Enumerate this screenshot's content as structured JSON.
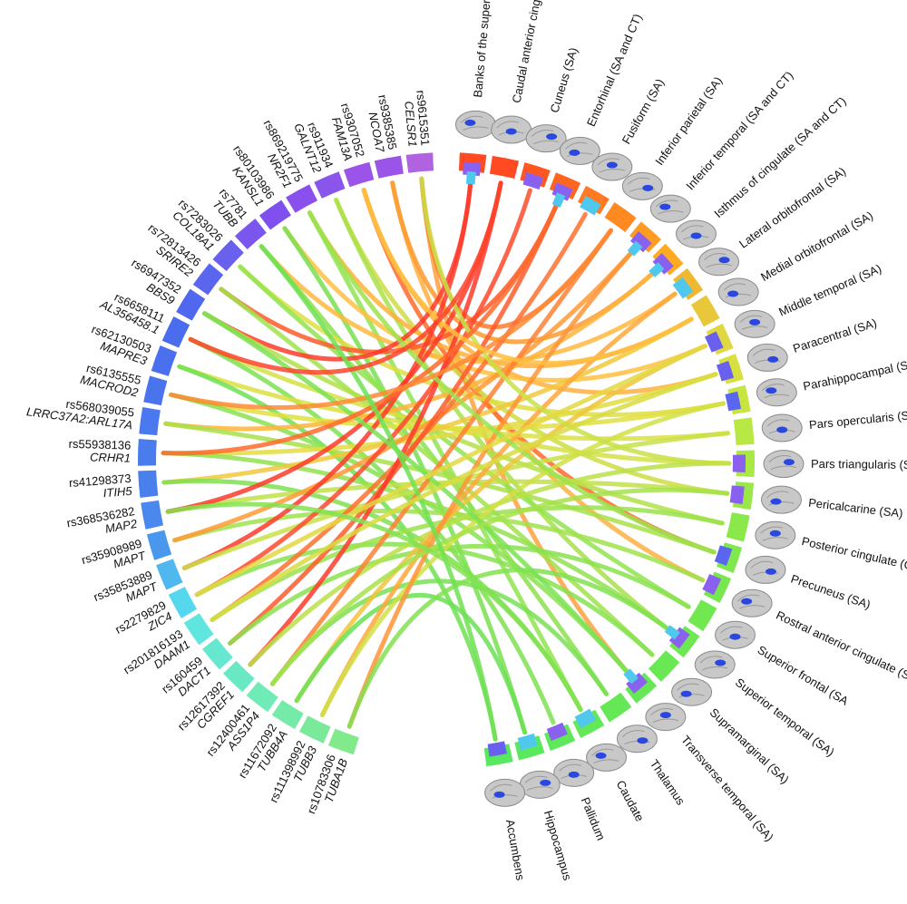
{
  "snps": [
    {
      "id": "rs9615351",
      "gene": "CELSR1",
      "colors": [
        "#b062e0"
      ]
    },
    {
      "id": "rs9385385",
      "gene": "NCOA7",
      "colors": [
        "#9a55e8"
      ]
    },
    {
      "id": "rs9307052",
      "gene": "FAM13A",
      "colors": [
        "#9a55e8"
      ]
    },
    {
      "id": "rs911934",
      "gene": "GALNT12",
      "colors": [
        "#8a55ea"
      ]
    },
    {
      "id": "rs869219775",
      "gene": "NR2F1",
      "colors": [
        "#8a50ec"
      ]
    },
    {
      "id": "rs80103986",
      "gene": "KANSL1",
      "colors": [
        "#8050ee"
      ]
    },
    {
      "id": "rs7781",
      "gene": "TUBB",
      "colors": [
        "#7a55ee"
      ]
    },
    {
      "id": "rs7283026",
      "gene": "COL18A1",
      "colors": [
        "#6a60ee"
      ]
    },
    {
      "id": "rs72813426",
      "gene": "SRIRE2",
      "colors": [
        "#5a66ee"
      ]
    },
    {
      "id": "rs6947352",
      "gene": "BBS9",
      "colors": [
        "#5068ee"
      ]
    },
    {
      "id": "rs6658111",
      "gene": "AL356458.1",
      "colors": [
        "#4a6cee"
      ]
    },
    {
      "id": "rs62130503",
      "gene": "MAPRE3",
      "colors": [
        "#4a70ee"
      ]
    },
    {
      "id": "rs6135555",
      "gene": "MACROD2",
      "colors": [
        "#4a74ee"
      ]
    },
    {
      "id": "rs568039055",
      "gene": "LRRC37A2:ARL17A",
      "colors": [
        "#4a78ee"
      ]
    },
    {
      "id": "rs55938136",
      "gene": "CRHR1",
      "colors": [
        "#4a7cee"
      ]
    },
    {
      "id": "rs41298373",
      "gene": "ITIH5",
      "colors": [
        "#4a80ee"
      ]
    },
    {
      "id": "rs368536282",
      "gene": "MAP2",
      "colors": [
        "#4a88ee"
      ]
    },
    {
      "id": "rs35908989",
      "gene": "MAPT",
      "colors": [
        "#4a98ee"
      ]
    },
    {
      "id": "rs35853889",
      "gene": "MAPT",
      "colors": [
        "#50b8ee"
      ]
    },
    {
      "id": "rs2279829",
      "gene": "ZIC4",
      "colors": [
        "#55d8ee"
      ]
    },
    {
      "id": "rs201816193",
      "gene": "DAAM1",
      "colors": [
        "#60e6de"
      ]
    },
    {
      "id": "rs160459",
      "gene": "DACT1",
      "colors": [
        "#66e8d0"
      ]
    },
    {
      "id": "rs12617392",
      "gene": "CGREF1",
      "colors": [
        "#6ae8c4"
      ]
    },
    {
      "id": "rs12400461",
      "gene": "ASS1P4",
      "colors": [
        "#70eab6"
      ]
    },
    {
      "id": "rs11672092",
      "gene": "TUBB4A",
      "colors": [
        "#76eaa8"
      ]
    },
    {
      "id": "rs111398992",
      "gene": "TUBB3",
      "colors": [
        "#7aea9a"
      ]
    },
    {
      "id": "rs10783306",
      "gene": "TUBA1B",
      "colors": [
        "#80ea8c"
      ]
    }
  ],
  "regions": [
    {
      "name": "Banks of the superior temporal sulcus (SA)",
      "colors": [
        "#ff4a22",
        "#8a60ee",
        "#50c8ee"
      ]
    },
    {
      "name": "Caudal anterior cingulate (SA)",
      "colors": [
        "#ff4a22"
      ]
    },
    {
      "name": "Cuneus (SA)",
      "colors": [
        "#ff5622",
        "#8a60ee"
      ]
    },
    {
      "name": "Entorhinal (SA and CT)",
      "colors": [
        "#ff6622",
        "#8a60ee",
        "#50c8ee"
      ]
    },
    {
      "name": "Fusiform (SA)",
      "colors": [
        "#ff7a22",
        "#50c8ee"
      ]
    },
    {
      "name": "Inferior parietal (SA)",
      "colors": [
        "#ff8a22"
      ]
    },
    {
      "name": "Inferior temporal (SA and CT)",
      "colors": [
        "#ff9a22",
        "#8a60ee",
        "#50c8ee"
      ]
    },
    {
      "name": "Isthmus of cingulate (SA and CT)",
      "colors": [
        "#ffaa22",
        "#8a60ee",
        "#50c8ee"
      ]
    },
    {
      "name": "Lateral orbitofrontal (SA)",
      "colors": [
        "#f0b830",
        "#50c8ee"
      ]
    },
    {
      "name": "Medial orbitofrontal (SA)",
      "colors": [
        "#e8c83a"
      ]
    },
    {
      "name": "Middle temporal (SA)",
      "colors": [
        "#e0d840",
        "#6a60ee"
      ]
    },
    {
      "name": "Paracentral (SA)",
      "colors": [
        "#d8e040",
        "#6a60ee"
      ]
    },
    {
      "name": "Parahippocampal (SA and CT)",
      "colors": [
        "#c8e440",
        "#5a66ee"
      ]
    },
    {
      "name": "Pars opercularis (SA)",
      "colors": [
        "#b8e844"
      ]
    },
    {
      "name": "Pars triangularis (SA)",
      "colors": [
        "#aae846",
        "#8a60ee"
      ]
    },
    {
      "name": "Pericalcarine (SA)",
      "colors": [
        "#9ae848",
        "#8a60ee"
      ]
    },
    {
      "name": "Posterior cingulate (CT)",
      "colors": [
        "#8ae84a"
      ]
    },
    {
      "name": "Precuneus (SA)",
      "colors": [
        "#7ee84c",
        "#5a66ee"
      ]
    },
    {
      "name": "Rostral anterior cingulate (SA and CT)",
      "colors": [
        "#76e84e",
        "#8a60ee"
      ]
    },
    {
      "name": "Superior frontal (SA",
      "colors": [
        "#72e850"
      ]
    },
    {
      "name": "Superior temporal (SA)",
      "colors": [
        "#6ee852",
        "#8a60ee",
        "#50c8ee"
      ]
    },
    {
      "name": "Supramarginal (SA)",
      "colors": [
        "#6ae854"
      ]
    },
    {
      "name": "Transverse temporal (SA)",
      "colors": [
        "#66e856",
        "#8a60ee",
        "#50c8ee"
      ]
    },
    {
      "name": "Thalamus",
      "colors": [
        "#66e856"
      ]
    },
    {
      "name": "Caudate",
      "colors": [
        "#62e858",
        "#50c8ee"
      ]
    },
    {
      "name": "Pallidum",
      "colors": [
        "#5ee85a",
        "#8a60ee"
      ]
    },
    {
      "name": "Hippocampus",
      "colors": [
        "#5ae85c",
        "#50c8ee"
      ]
    },
    {
      "name": "Accumbens",
      "colors": [
        "#56e85e",
        "#6a60ee"
      ]
    }
  ]
}
